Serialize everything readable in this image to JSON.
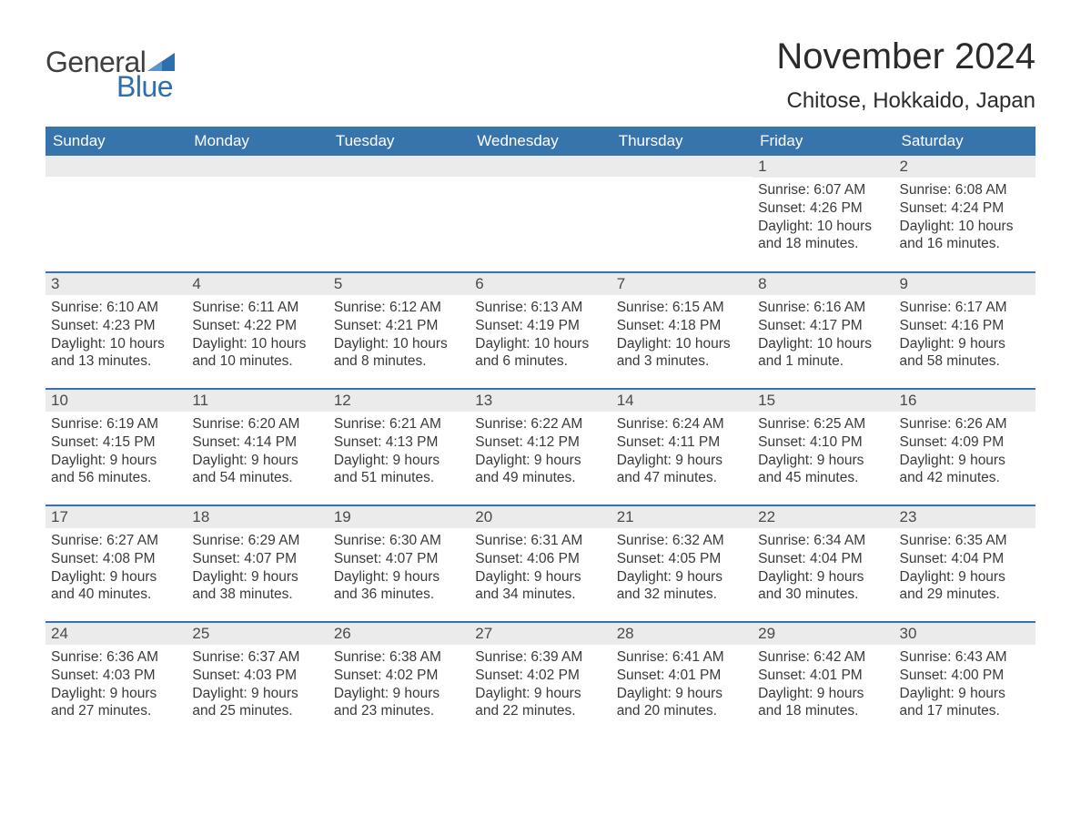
{
  "logo": {
    "text1": "General",
    "text2": "Blue",
    "flag_color": "#2f6fad"
  },
  "title": "November 2024",
  "location": "Chitose, Hokkaido, Japan",
  "colors": {
    "header_bg": "#3874ac",
    "header_text": "#ffffff",
    "daybar_bg": "#ebebeb",
    "row_border": "#3874ac",
    "body_text": "#3a3a3a"
  },
  "day_labels": [
    "Sunday",
    "Monday",
    "Tuesday",
    "Wednesday",
    "Thursday",
    "Friday",
    "Saturday"
  ],
  "weeks": [
    [
      {
        "day": "",
        "sunrise": "",
        "sunset": "",
        "daylight": ""
      },
      {
        "day": "",
        "sunrise": "",
        "sunset": "",
        "daylight": ""
      },
      {
        "day": "",
        "sunrise": "",
        "sunset": "",
        "daylight": ""
      },
      {
        "day": "",
        "sunrise": "",
        "sunset": "",
        "daylight": ""
      },
      {
        "day": "",
        "sunrise": "",
        "sunset": "",
        "daylight": ""
      },
      {
        "day": "1",
        "sunrise": "Sunrise: 6:07 AM",
        "sunset": "Sunset: 4:26 PM",
        "daylight": "Daylight: 10 hours and 18 minutes."
      },
      {
        "day": "2",
        "sunrise": "Sunrise: 6:08 AM",
        "sunset": "Sunset: 4:24 PM",
        "daylight": "Daylight: 10 hours and 16 minutes."
      }
    ],
    [
      {
        "day": "3",
        "sunrise": "Sunrise: 6:10 AM",
        "sunset": "Sunset: 4:23 PM",
        "daylight": "Daylight: 10 hours and 13 minutes."
      },
      {
        "day": "4",
        "sunrise": "Sunrise: 6:11 AM",
        "sunset": "Sunset: 4:22 PM",
        "daylight": "Daylight: 10 hours and 10 minutes."
      },
      {
        "day": "5",
        "sunrise": "Sunrise: 6:12 AM",
        "sunset": "Sunset: 4:21 PM",
        "daylight": "Daylight: 10 hours and 8 minutes."
      },
      {
        "day": "6",
        "sunrise": "Sunrise: 6:13 AM",
        "sunset": "Sunset: 4:19 PM",
        "daylight": "Daylight: 10 hours and 6 minutes."
      },
      {
        "day": "7",
        "sunrise": "Sunrise: 6:15 AM",
        "sunset": "Sunset: 4:18 PM",
        "daylight": "Daylight: 10 hours and 3 minutes."
      },
      {
        "day": "8",
        "sunrise": "Sunrise: 6:16 AM",
        "sunset": "Sunset: 4:17 PM",
        "daylight": "Daylight: 10 hours and 1 minute."
      },
      {
        "day": "9",
        "sunrise": "Sunrise: 6:17 AM",
        "sunset": "Sunset: 4:16 PM",
        "daylight": "Daylight: 9 hours and 58 minutes."
      }
    ],
    [
      {
        "day": "10",
        "sunrise": "Sunrise: 6:19 AM",
        "sunset": "Sunset: 4:15 PM",
        "daylight": "Daylight: 9 hours and 56 minutes."
      },
      {
        "day": "11",
        "sunrise": "Sunrise: 6:20 AM",
        "sunset": "Sunset: 4:14 PM",
        "daylight": "Daylight: 9 hours and 54 minutes."
      },
      {
        "day": "12",
        "sunrise": "Sunrise: 6:21 AM",
        "sunset": "Sunset: 4:13 PM",
        "daylight": "Daylight: 9 hours and 51 minutes."
      },
      {
        "day": "13",
        "sunrise": "Sunrise: 6:22 AM",
        "sunset": "Sunset: 4:12 PM",
        "daylight": "Daylight: 9 hours and 49 minutes."
      },
      {
        "day": "14",
        "sunrise": "Sunrise: 6:24 AM",
        "sunset": "Sunset: 4:11 PM",
        "daylight": "Daylight: 9 hours and 47 minutes."
      },
      {
        "day": "15",
        "sunrise": "Sunrise: 6:25 AM",
        "sunset": "Sunset: 4:10 PM",
        "daylight": "Daylight: 9 hours and 45 minutes."
      },
      {
        "day": "16",
        "sunrise": "Sunrise: 6:26 AM",
        "sunset": "Sunset: 4:09 PM",
        "daylight": "Daylight: 9 hours and 42 minutes."
      }
    ],
    [
      {
        "day": "17",
        "sunrise": "Sunrise: 6:27 AM",
        "sunset": "Sunset: 4:08 PM",
        "daylight": "Daylight: 9 hours and 40 minutes."
      },
      {
        "day": "18",
        "sunrise": "Sunrise: 6:29 AM",
        "sunset": "Sunset: 4:07 PM",
        "daylight": "Daylight: 9 hours and 38 minutes."
      },
      {
        "day": "19",
        "sunrise": "Sunrise: 6:30 AM",
        "sunset": "Sunset: 4:07 PM",
        "daylight": "Daylight: 9 hours and 36 minutes."
      },
      {
        "day": "20",
        "sunrise": "Sunrise: 6:31 AM",
        "sunset": "Sunset: 4:06 PM",
        "daylight": "Daylight: 9 hours and 34 minutes."
      },
      {
        "day": "21",
        "sunrise": "Sunrise: 6:32 AM",
        "sunset": "Sunset: 4:05 PM",
        "daylight": "Daylight: 9 hours and 32 minutes."
      },
      {
        "day": "22",
        "sunrise": "Sunrise: 6:34 AM",
        "sunset": "Sunset: 4:04 PM",
        "daylight": "Daylight: 9 hours and 30 minutes."
      },
      {
        "day": "23",
        "sunrise": "Sunrise: 6:35 AM",
        "sunset": "Sunset: 4:04 PM",
        "daylight": "Daylight: 9 hours and 29 minutes."
      }
    ],
    [
      {
        "day": "24",
        "sunrise": "Sunrise: 6:36 AM",
        "sunset": "Sunset: 4:03 PM",
        "daylight": "Daylight: 9 hours and 27 minutes."
      },
      {
        "day": "25",
        "sunrise": "Sunrise: 6:37 AM",
        "sunset": "Sunset: 4:03 PM",
        "daylight": "Daylight: 9 hours and 25 minutes."
      },
      {
        "day": "26",
        "sunrise": "Sunrise: 6:38 AM",
        "sunset": "Sunset: 4:02 PM",
        "daylight": "Daylight: 9 hours and 23 minutes."
      },
      {
        "day": "27",
        "sunrise": "Sunrise: 6:39 AM",
        "sunset": "Sunset: 4:02 PM",
        "daylight": "Daylight: 9 hours and 22 minutes."
      },
      {
        "day": "28",
        "sunrise": "Sunrise: 6:41 AM",
        "sunset": "Sunset: 4:01 PM",
        "daylight": "Daylight: 9 hours and 20 minutes."
      },
      {
        "day": "29",
        "sunrise": "Sunrise: 6:42 AM",
        "sunset": "Sunset: 4:01 PM",
        "daylight": "Daylight: 9 hours and 18 minutes."
      },
      {
        "day": "30",
        "sunrise": "Sunrise: 6:43 AM",
        "sunset": "Sunset: 4:00 PM",
        "daylight": "Daylight: 9 hours and 17 minutes."
      }
    ]
  ]
}
